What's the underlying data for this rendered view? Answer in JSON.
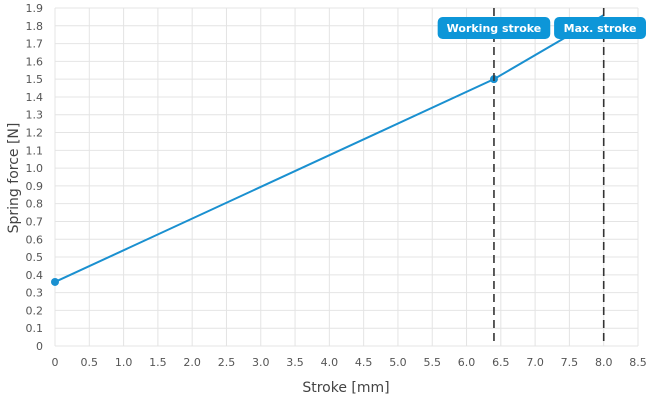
{
  "chart_data": {
    "type": "line",
    "title": "",
    "xlabel": "Stroke [mm]",
    "ylabel": "Spring force [N]",
    "xlim": [
      0,
      8.5
    ],
    "ylim": [
      0,
      1.9
    ],
    "x_ticks": [
      "0",
      "0.5",
      "1.0",
      "1.5",
      "2.0",
      "2.5",
      "3.0",
      "3.5",
      "4.0",
      "4.5",
      "5.0",
      "5.5",
      "6.0",
      "6.5",
      "7.0",
      "7.5",
      "8.0",
      "8.5"
    ],
    "y_ticks": [
      "0",
      "0.1",
      "0.2",
      "0.3",
      "0.4",
      "0.5",
      "0.6",
      "0.7",
      "0.8",
      "0.9",
      "1.0",
      "1.1",
      "1.2",
      "1.3",
      "1.4",
      "1.5",
      "1.6",
      "1.7",
      "1.8",
      "1.9"
    ],
    "grid": true,
    "series": [
      {
        "x": [
          0,
          6.4,
          8.0
        ],
        "y": [
          0.36,
          1.5,
          1.86
        ],
        "color": "#1a90d0"
      }
    ],
    "points": [
      {
        "x": 0,
        "y": 0.36
      },
      {
        "x": 6.4,
        "y": 1.5
      }
    ],
    "markers": [
      {
        "label": "Working stroke",
        "x": 6.4
      },
      {
        "label": "Max. stroke",
        "x": 8.0
      }
    ],
    "colors": {
      "line": "#1a90d0",
      "label_bg": "#0d96d8",
      "marker_line": "#333333",
      "grid": "#e4e4e4"
    }
  }
}
